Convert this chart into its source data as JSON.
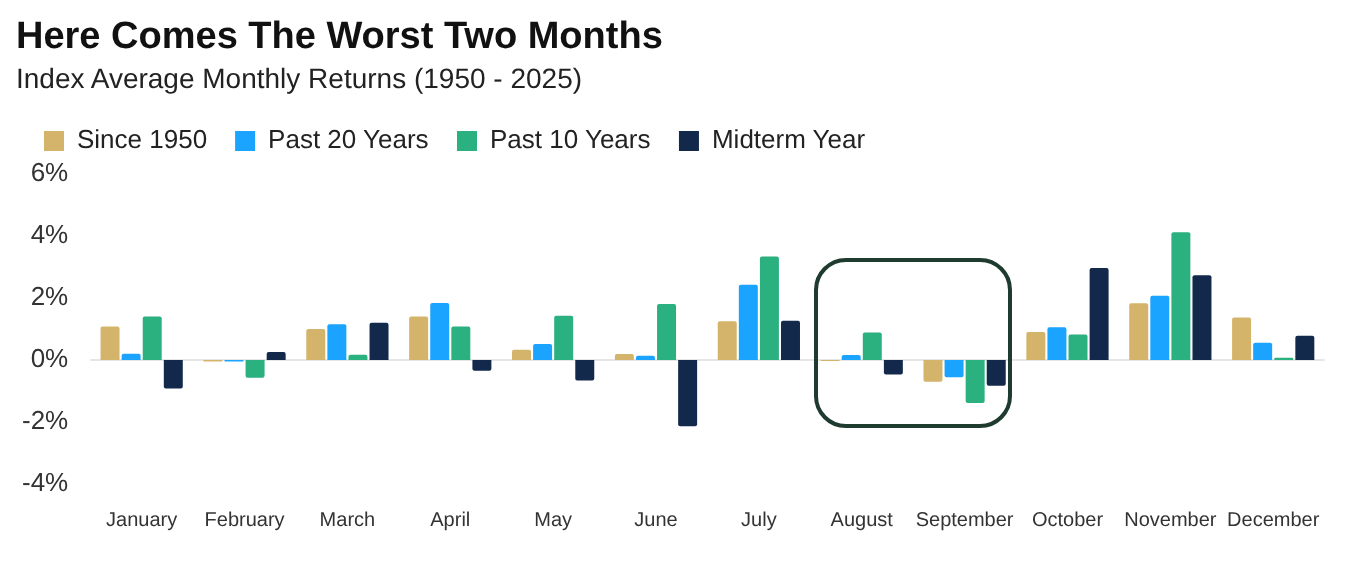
{
  "chart_data": {
    "type": "bar",
    "title": "Here Comes The Worst Two Months",
    "subtitle": "Index Average Monthly Returns (1950 - 2025)",
    "categories": [
      "January",
      "February",
      "March",
      "April",
      "May",
      "June",
      "July",
      "August",
      "September",
      "October",
      "November",
      "December"
    ],
    "series": [
      {
        "name": "Since 1950",
        "color": "#d4b36a",
        "values": [
          1.08,
          -0.05,
          1.0,
          1.4,
          0.33,
          0.19,
          1.25,
          -0.03,
          -0.7,
          0.9,
          1.83,
          1.37
        ]
      },
      {
        "name": "Past 20 Years",
        "color": "#1aa3ff",
        "values": [
          0.2,
          -0.05,
          1.15,
          1.84,
          0.52,
          0.14,
          2.43,
          0.16,
          -0.56,
          1.06,
          2.07,
          0.56
        ]
      },
      {
        "name": "Past 10 Years",
        "color": "#2bb07f",
        "values": [
          1.4,
          -0.57,
          0.17,
          1.08,
          1.43,
          1.81,
          3.34,
          0.89,
          -1.39,
          0.82,
          4.12,
          0.07
        ]
      },
      {
        "name": "Midterm Year",
        "color": "#13294b",
        "values": [
          -0.92,
          0.26,
          1.2,
          -0.35,
          -0.66,
          -2.14,
          1.27,
          -0.47,
          -0.83,
          2.97,
          2.73,
          0.78
        ]
      }
    ],
    "ylim": [
      -4,
      6
    ],
    "yticks": [
      {
        "value": -4,
        "label": "-4%"
      },
      {
        "value": -2,
        "label": "-2%"
      },
      {
        "value": 0,
        "label": "0%"
      },
      {
        "value": 2,
        "label": "2%"
      },
      {
        "value": 4,
        "label": "4%"
      },
      {
        "value": 6,
        "label": "6%"
      }
    ],
    "ref_lines": [
      {
        "axis": "y",
        "value": 0,
        "color": "#e6e6e6"
      }
    ],
    "grid": false,
    "legend": "top left"
  }
}
